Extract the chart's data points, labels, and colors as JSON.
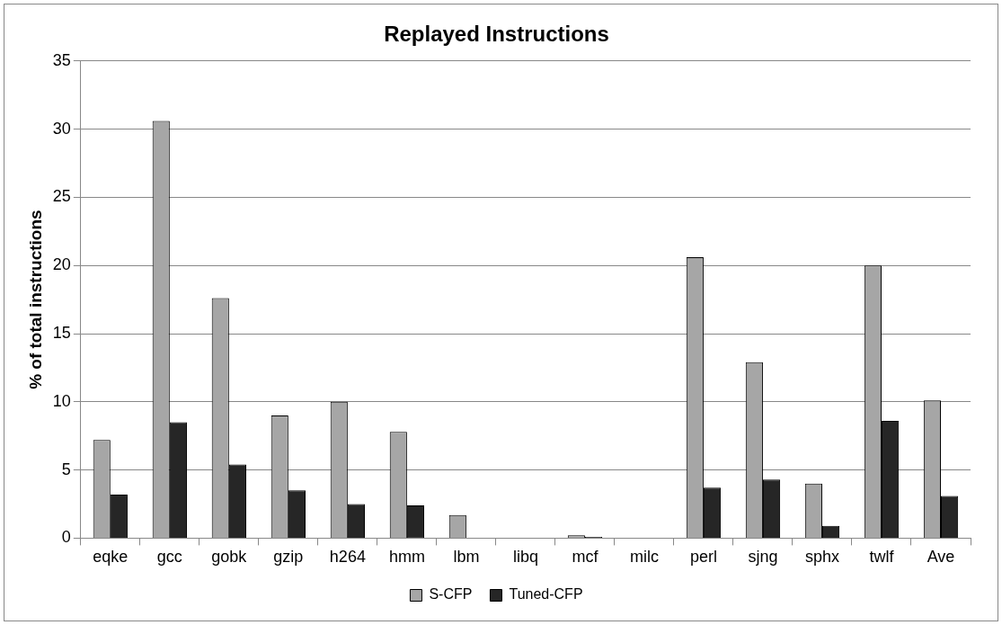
{
  "chart_data": {
    "type": "bar",
    "title": "Replayed Instructions",
    "ylabel": "% of total instructions",
    "categories": [
      "eqke",
      "gcc",
      "gobk",
      "gzip",
      "h264",
      "hmm",
      "lbm",
      "libq",
      "mcf",
      "milc",
      "perl",
      "sjng",
      "sphx",
      "twlf",
      "Ave"
    ],
    "series": [
      {
        "name": "S-CFP",
        "color": "#a6a6a6",
        "values": [
          7.2,
          30.6,
          17.6,
          9.0,
          10.0,
          7.8,
          1.7,
          0,
          0.2,
          0,
          20.6,
          12.9,
          4.0,
          20.0,
          10.1
        ]
      },
      {
        "name": "Tuned-CFP",
        "color": "#262626",
        "values": [
          3.2,
          8.5,
          5.4,
          3.5,
          2.5,
          2.4,
          0,
          0,
          0.1,
          0,
          3.7,
          4.3,
          0.9,
          8.6,
          3.1
        ]
      }
    ],
    "ylim": [
      0,
      35
    ],
    "yticks": [
      0,
      5,
      10,
      15,
      20,
      25,
      30,
      35
    ],
    "grid": "y",
    "legend": "bottom"
  }
}
